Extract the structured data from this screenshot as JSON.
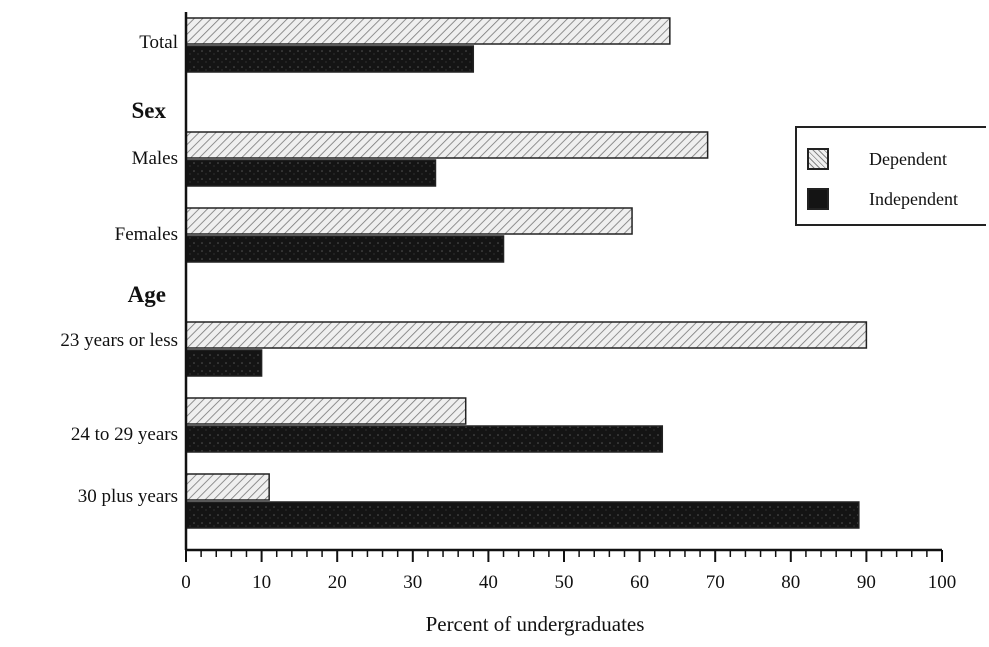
{
  "chart_data": {
    "type": "bar",
    "orientation": "horizontal",
    "categories": [
      "Total",
      "Males",
      "Females",
      "23 years or less",
      "24 to 29 years",
      "30 plus years"
    ],
    "group_headings": [
      "Sex",
      "Age"
    ],
    "series": [
      {
        "name": "Dependent",
        "values": [
          64,
          69,
          59,
          90,
          37,
          11
        ],
        "color": "#d9d9d9",
        "pattern": "light-hatch"
      },
      {
        "name": "Independent",
        "values": [
          38,
          33,
          42,
          10,
          63,
          89
        ],
        "color": "#1a1a1a",
        "pattern": "dark-speckle"
      }
    ],
    "xlabel": "Percent of undergraduates",
    "xlim": [
      0,
      100
    ],
    "xticks": [
      "0",
      "10",
      "20",
      "30",
      "40",
      "50",
      "60",
      "70",
      "80",
      "90",
      "100"
    ],
    "grid": false,
    "legend_position": "right"
  }
}
